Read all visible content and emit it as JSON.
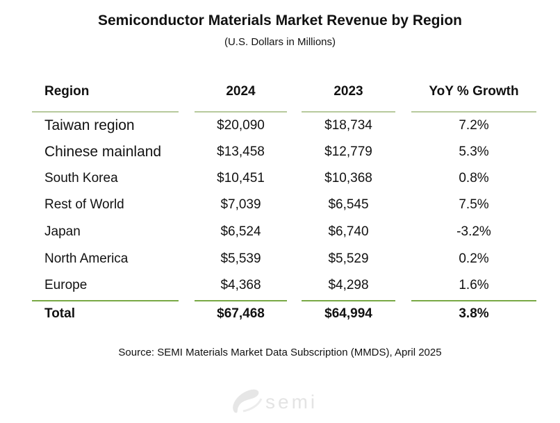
{
  "title": "Semiconductor Materials Market Revenue by Region",
  "subtitle": "(U.S. Dollars in Millions)",
  "source": "Source: SEMI Materials Market Data Subscription (MMDS), April 2025",
  "logo_text": "semi",
  "colors": {
    "header_rule": "#b7c99c",
    "total_rule": "#78a844",
    "logo": "#e4e4e4"
  },
  "chart_data": {
    "type": "table",
    "title": "Semiconductor Materials Market Revenue by Region",
    "subtitle": "(U.S. Dollars in Millions)",
    "columns": [
      "Region",
      "2024",
      "2023",
      "YoY % Growth"
    ],
    "rows": [
      [
        "Taiwan region",
        "$20,090",
        "$18,734",
        "7.2%"
      ],
      [
        "Chinese mainland",
        "$13,458",
        "$12,779",
        "5.3%"
      ],
      [
        "South Korea",
        "$10,451",
        "$10,368",
        "0.8%"
      ],
      [
        "Rest of World",
        "$7,039",
        "$6,545",
        "7.5%"
      ],
      [
        "Japan",
        "$6,524",
        "$6,740",
        "-3.2%"
      ],
      [
        "North America",
        "$5,539",
        "$5,529",
        "0.2%"
      ],
      [
        "Europe",
        "$4,368",
        "$4,298",
        "1.6%"
      ]
    ],
    "total": [
      "Total",
      "$67,468",
      "$64,994",
      "3.8%"
    ]
  }
}
